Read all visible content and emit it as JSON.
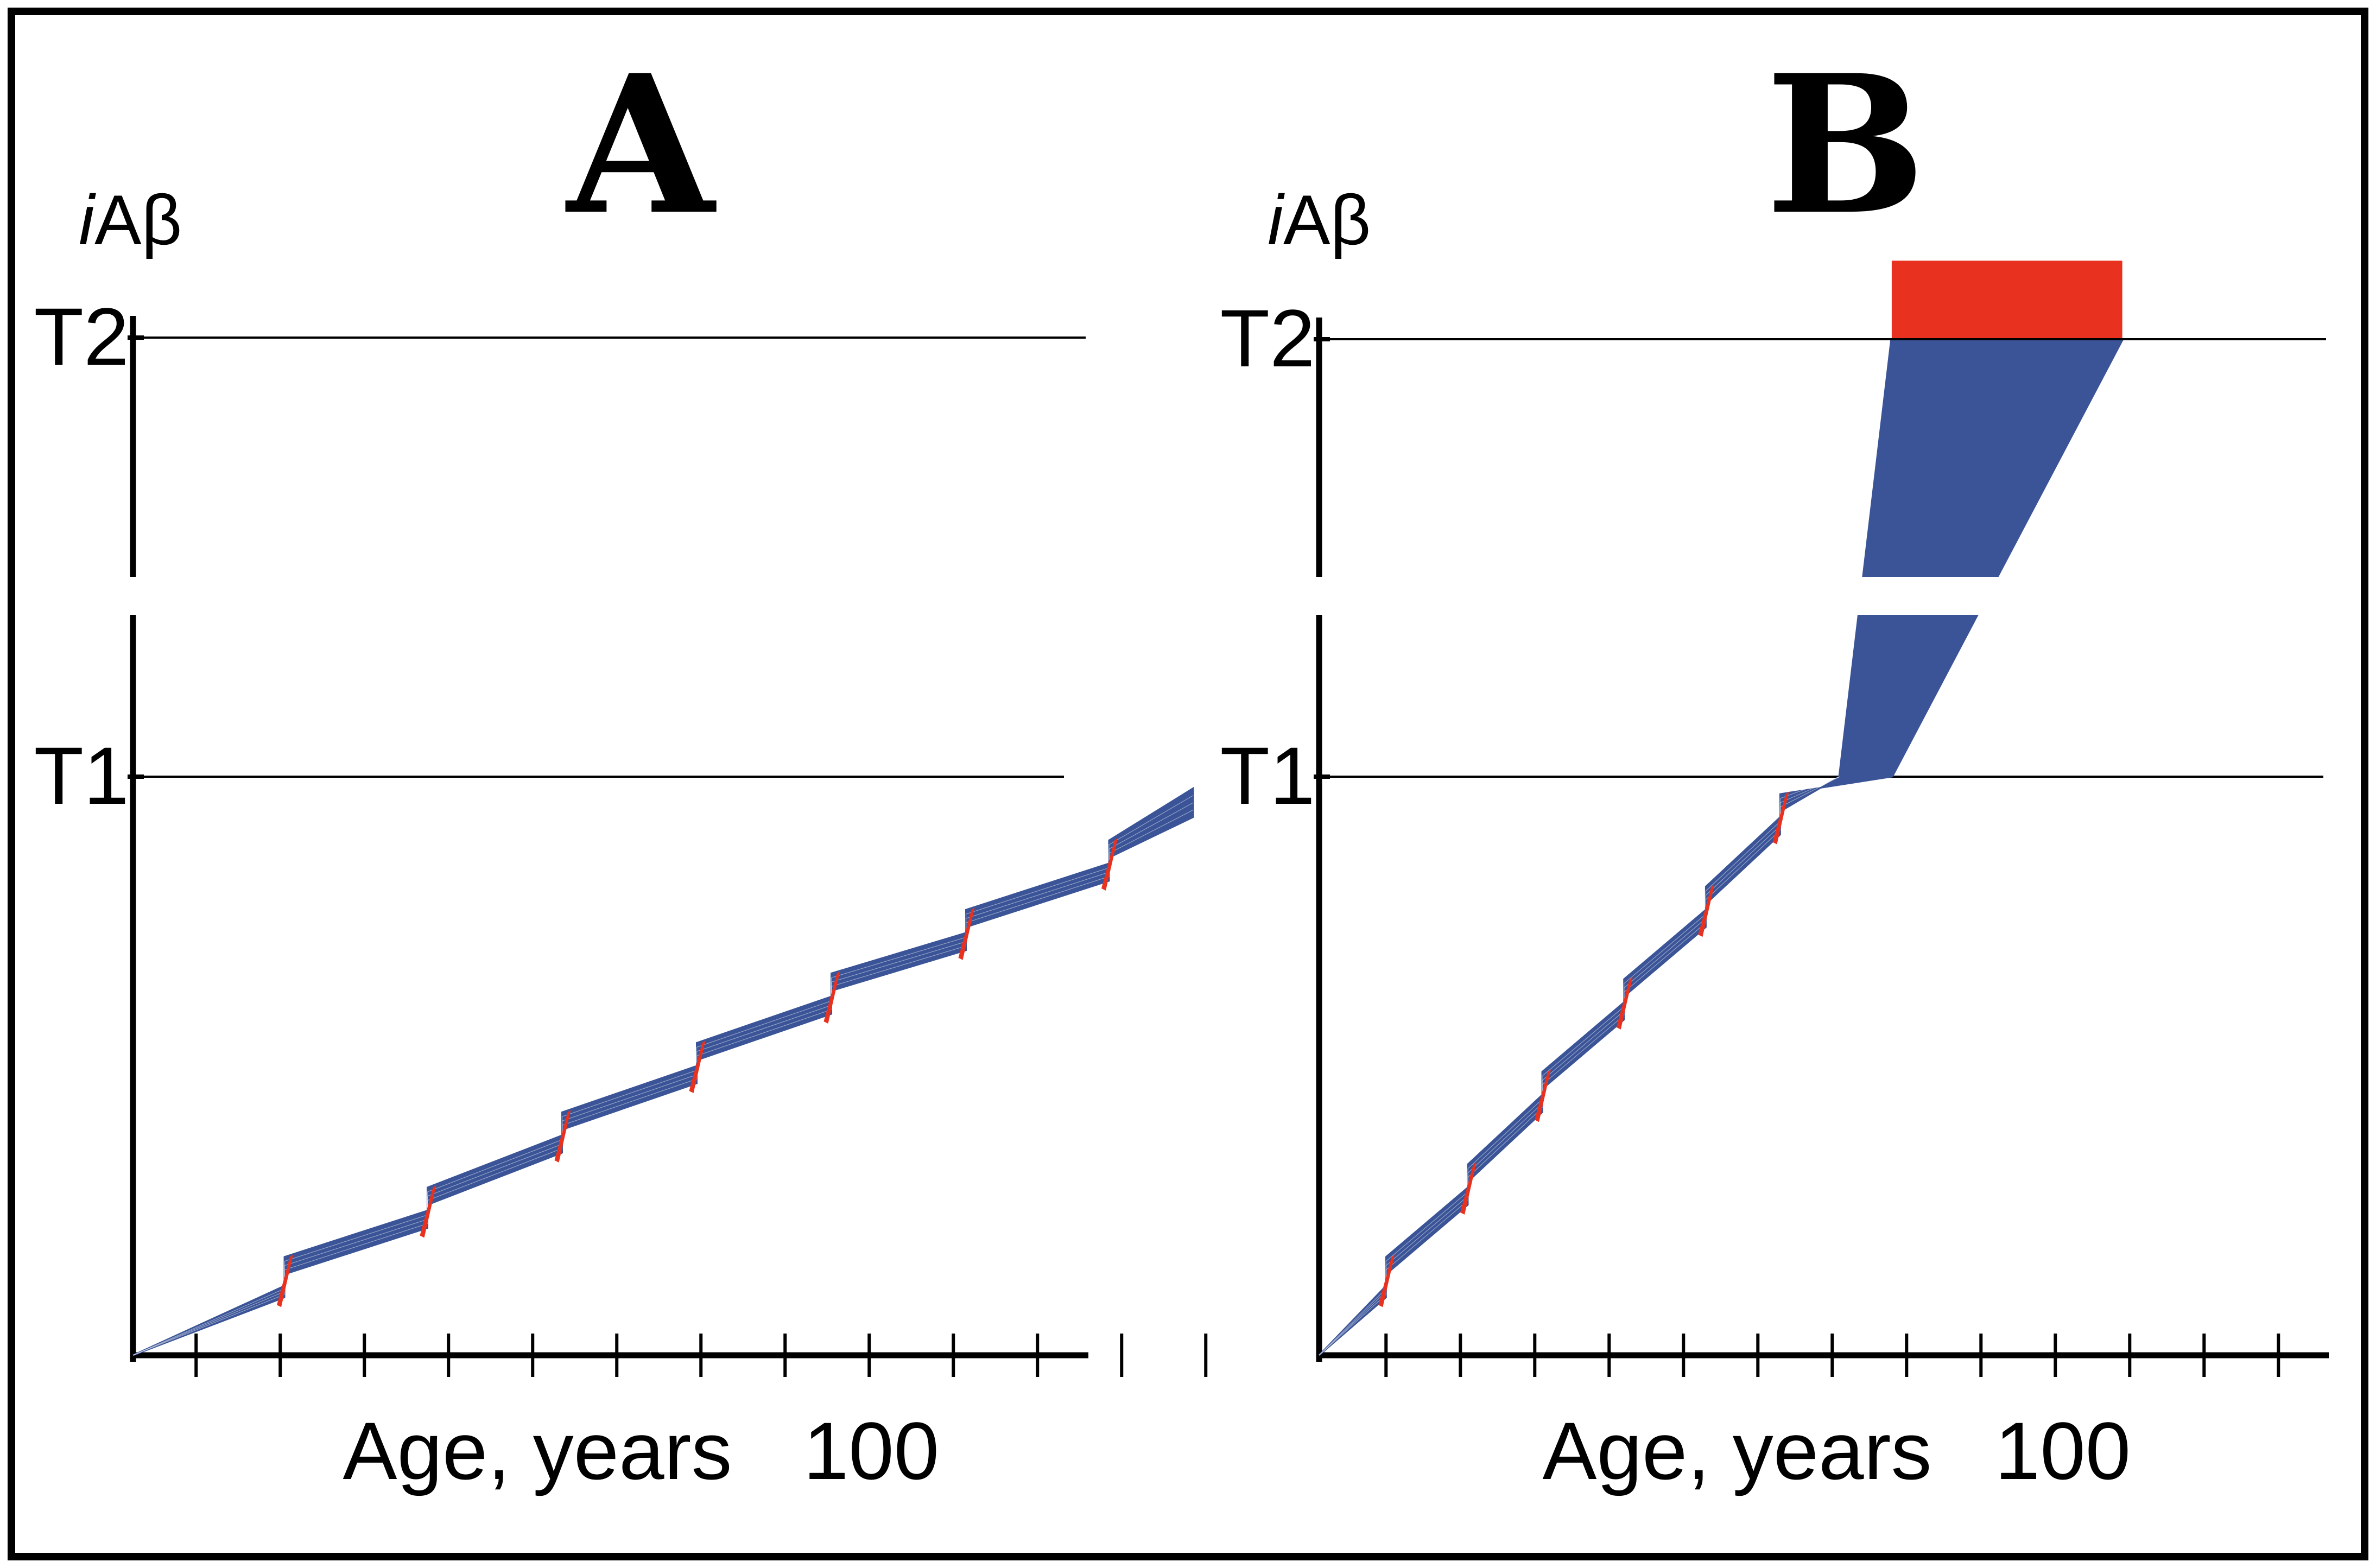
{
  "figure": {
    "background": "#ffffff",
    "line_color": "#3a5497",
    "highlight_color": "#e8321f",
    "axis_color": "#000000"
  },
  "chart_data": [
    {
      "type": "line",
      "panel": "A",
      "title": "A",
      "ylabel_italic": "i",
      "ylabel_rest": "Aβ",
      "xlabel": "Age, years",
      "xtick_label": "100",
      "xtick_label_value": 100,
      "xlim": [
        0,
        128
      ],
      "ylim": [
        0,
        100
      ],
      "ytick_labels": [
        "T1",
        "T2"
      ],
      "thresholds": {
        "T1": 50,
        "T2": 89
      },
      "axis_break_between": [
        60,
        62.5
      ],
      "xticks": [
        7.5,
        17.5,
        27.5,
        37.5,
        47.5,
        57.5,
        67.5,
        77.5,
        87.5,
        97.5,
        107.5,
        117.5,
        127.5
      ],
      "series": [
        {
          "name": "lower_bound",
          "x": [
            0,
            18,
            18,
            35,
            35,
            51,
            51,
            67,
            67,
            83,
            83,
            99,
            99,
            116,
            116,
            126
          ],
          "y": [
            0,
            5,
            7,
            11,
            13,
            17.5,
            19.5,
            23.5,
            25.5,
            29.5,
            31.5,
            35,
            37,
            41,
            43,
            46.5
          ]
        },
        {
          "name": "upper_bound",
          "x": [
            0,
            18,
            18,
            35,
            35,
            51,
            51,
            67,
            67,
            83,
            83,
            99,
            99,
            116,
            116,
            126
          ],
          "y": [
            0,
            6,
            8.5,
            12.5,
            14.5,
            19,
            21,
            25,
            27,
            31,
            33,
            36.5,
            38.5,
            42.5,
            44.5,
            49
          ]
        }
      ],
      "events_x": [
        18,
        35,
        51,
        67,
        83,
        99,
        116
      ]
    },
    {
      "type": "line",
      "panel": "B",
      "title": "B",
      "ylabel_italic": "i",
      "ylabel_rest": "Aβ",
      "xlabel": "Age, years",
      "xtick_label": "100",
      "xtick_label_value": 100,
      "xlim": [
        0,
        133
      ],
      "ylim": [
        0,
        100
      ],
      "ytick_labels": [
        "T1",
        "T2"
      ],
      "thresholds": {
        "T1": 50,
        "T2": 89
      },
      "axis_break_between": [
        60,
        62.5
      ],
      "xticks": [
        9,
        19,
        29,
        39,
        49,
        59,
        69,
        79,
        89,
        99,
        109,
        119,
        129
      ],
      "series": [
        {
          "name": "lower_bound",
          "x": [
            0,
            9,
            9,
            20,
            20,
            30,
            30,
            41,
            41,
            52,
            52,
            62,
            62,
            70,
            77
          ],
          "y": [
            0,
            5,
            7,
            13,
            15,
            21,
            23,
            29,
            31,
            37,
            39,
            45,
            47,
            50,
            89
          ]
        },
        {
          "name": "upper_bound",
          "x": [
            0,
            9,
            9,
            20,
            20,
            30,
            30,
            41,
            41,
            52,
            52,
            62,
            62,
            77,
            108
          ],
          "y": [
            0,
            6,
            8.5,
            14.5,
            16.5,
            22.5,
            24.5,
            30.5,
            32.5,
            38.5,
            40.5,
            46.5,
            48.5,
            50,
            89
          ]
        }
      ],
      "events_x": [
        9,
        20,
        30,
        41,
        52,
        62
      ],
      "fan_out": {
        "from_x": [
          70,
          77
        ],
        "from_y": 50,
        "to_x": [
          77,
          108
        ],
        "to_y": 89,
        "count": 18
      },
      "highlight_band": {
        "x": [
          77,
          108
        ],
        "y": [
          89,
          96
        ]
      }
    }
  ]
}
